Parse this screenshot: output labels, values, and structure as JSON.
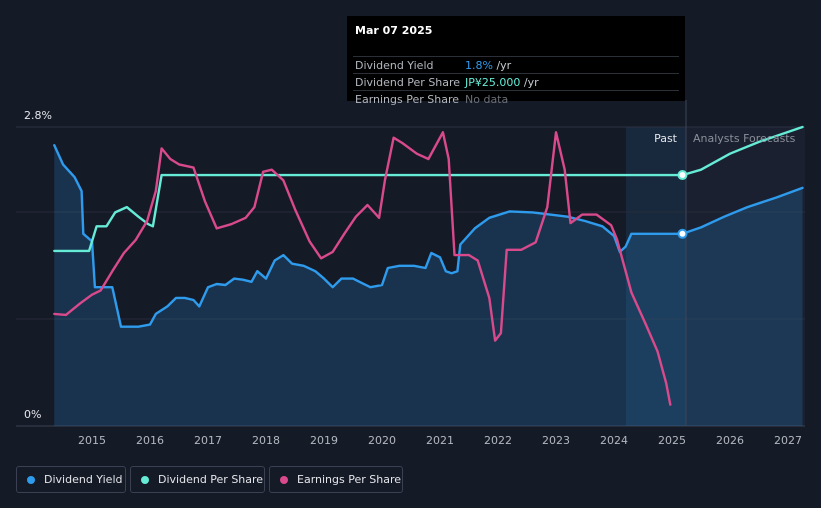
{
  "tooltip": {
    "date": "Mar 07 2025",
    "rows": [
      {
        "label": "Dividend Yield",
        "value": "1.8%",
        "unit": " /yr",
        "color": "#2f9bed"
      },
      {
        "label": "Dividend Per Share",
        "value": "JP¥25.000",
        "unit": " /yr",
        "color": "#65ebd6"
      },
      {
        "label": "Earnings Per Share",
        "value": "No data",
        "unit": "",
        "color": "#6b6f78"
      }
    ]
  },
  "labels": {
    "past": "Past",
    "forecast": "Analysts Forecasts"
  },
  "legend": [
    {
      "label": "Dividend Yield",
      "color": "#2f9bed"
    },
    {
      "label": "Dividend Per Share",
      "color": "#65ebd6"
    },
    {
      "label": "Earnings Per Share",
      "color": "#d84a8c"
    }
  ],
  "chart_data": {
    "type": "line",
    "ylim": [
      0,
      2.8
    ],
    "y_tick_labels": [
      "2.8%",
      "0%"
    ],
    "x_tick_labels": [
      "2015",
      "2016",
      "2017",
      "2018",
      "2019",
      "2020",
      "2021",
      "2022",
      "2023",
      "2024",
      "2025",
      "2026",
      "2027"
    ],
    "xlim": [
      2014.3,
      2027.25
    ],
    "grid": true,
    "legend_placement": "bottom-left",
    "forecast_start": 2025.18,
    "series": [
      {
        "name": "Dividend Yield",
        "color": "#2f9bed",
        "points": [
          [
            2014.35,
            2.63
          ],
          [
            2014.5,
            2.45
          ],
          [
            2014.7,
            2.33
          ],
          [
            2014.82,
            2.2
          ],
          [
            2014.85,
            1.8
          ],
          [
            2015.0,
            1.73
          ],
          [
            2015.05,
            1.3
          ],
          [
            2015.2,
            1.3
          ],
          [
            2015.35,
            1.3
          ],
          [
            2015.5,
            0.93
          ],
          [
            2015.8,
            0.93
          ],
          [
            2016.0,
            0.95
          ],
          [
            2016.1,
            1.05
          ],
          [
            2016.3,
            1.12
          ],
          [
            2016.45,
            1.2
          ],
          [
            2016.6,
            1.2
          ],
          [
            2016.75,
            1.18
          ],
          [
            2016.85,
            1.12
          ],
          [
            2017.0,
            1.3
          ],
          [
            2017.15,
            1.33
          ],
          [
            2017.3,
            1.32
          ],
          [
            2017.45,
            1.38
          ],
          [
            2017.6,
            1.37
          ],
          [
            2017.75,
            1.35
          ],
          [
            2017.85,
            1.45
          ],
          [
            2018.0,
            1.38
          ],
          [
            2018.15,
            1.55
          ],
          [
            2018.3,
            1.6
          ],
          [
            2018.45,
            1.52
          ],
          [
            2018.65,
            1.5
          ],
          [
            2018.85,
            1.45
          ],
          [
            2019.0,
            1.38
          ],
          [
            2019.15,
            1.3
          ],
          [
            2019.3,
            1.38
          ],
          [
            2019.5,
            1.38
          ],
          [
            2019.65,
            1.34
          ],
          [
            2019.8,
            1.3
          ],
          [
            2020.0,
            1.32
          ],
          [
            2020.1,
            1.48
          ],
          [
            2020.3,
            1.5
          ],
          [
            2020.55,
            1.5
          ],
          [
            2020.75,
            1.48
          ],
          [
            2020.85,
            1.62
          ],
          [
            2021.0,
            1.58
          ],
          [
            2021.1,
            1.45
          ],
          [
            2021.2,
            1.43
          ],
          [
            2021.3,
            1.45
          ],
          [
            2021.35,
            1.7
          ],
          [
            2021.6,
            1.85
          ],
          [
            2021.85,
            1.95
          ],
          [
            2022.2,
            2.01
          ],
          [
            2022.6,
            2.0
          ],
          [
            2022.9,
            1.98
          ],
          [
            2023.2,
            1.96
          ],
          [
            2023.5,
            1.92
          ],
          [
            2023.8,
            1.87
          ],
          [
            2024.0,
            1.78
          ],
          [
            2024.1,
            1.63
          ],
          [
            2024.2,
            1.68
          ],
          [
            2024.3,
            1.8
          ],
          [
            2024.6,
            1.8
          ],
          [
            2024.8,
            1.8
          ],
          [
            2025.0,
            1.8
          ],
          [
            2025.18,
            1.8
          ],
          [
            2025.5,
            1.86
          ],
          [
            2025.9,
            1.96
          ],
          [
            2026.3,
            2.05
          ],
          [
            2026.8,
            2.14
          ],
          [
            2027.25,
            2.23
          ]
        ]
      },
      {
        "name": "Dividend Per Share",
        "color": "#65ebd6",
        "points": [
          [
            2014.35,
            1.64
          ],
          [
            2014.95,
            1.64
          ],
          [
            2015.08,
            1.87
          ],
          [
            2015.25,
            1.87
          ],
          [
            2015.4,
            2.0
          ],
          [
            2015.6,
            2.05
          ],
          [
            2015.8,
            1.96
          ],
          [
            2015.97,
            1.89
          ],
          [
            2016.05,
            1.87
          ],
          [
            2016.2,
            2.35
          ],
          [
            2016.3,
            2.35
          ],
          [
            2024.6,
            2.35
          ],
          [
            2025.0,
            2.35
          ],
          [
            2025.18,
            2.35
          ],
          [
            2025.5,
            2.4
          ],
          [
            2026.0,
            2.55
          ],
          [
            2026.5,
            2.66
          ],
          [
            2027.25,
            2.8
          ]
        ]
      },
      {
        "name": "Earnings Per Share",
        "color": "#d84a8c",
        "points": [
          [
            2014.35,
            1.05
          ],
          [
            2014.55,
            1.04
          ],
          [
            2014.8,
            1.15
          ],
          [
            2015.0,
            1.23
          ],
          [
            2015.15,
            1.27
          ],
          [
            2015.35,
            1.45
          ],
          [
            2015.55,
            1.62
          ],
          [
            2015.75,
            1.74
          ],
          [
            2015.95,
            1.92
          ],
          [
            2016.1,
            2.2
          ],
          [
            2016.2,
            2.6
          ],
          [
            2016.35,
            2.5
          ],
          [
            2016.5,
            2.45
          ],
          [
            2016.75,
            2.42
          ],
          [
            2016.95,
            2.1
          ],
          [
            2017.15,
            1.85
          ],
          [
            2017.4,
            1.89
          ],
          [
            2017.65,
            1.95
          ],
          [
            2017.8,
            2.05
          ],
          [
            2017.95,
            2.38
          ],
          [
            2018.1,
            2.4
          ],
          [
            2018.3,
            2.3
          ],
          [
            2018.5,
            2.03
          ],
          [
            2018.75,
            1.73
          ],
          [
            2018.95,
            1.57
          ],
          [
            2019.15,
            1.63
          ],
          [
            2019.35,
            1.8
          ],
          [
            2019.55,
            1.96
          ],
          [
            2019.75,
            2.07
          ],
          [
            2019.95,
            1.95
          ],
          [
            2020.05,
            2.3
          ],
          [
            2020.2,
            2.7
          ],
          [
            2020.35,
            2.65
          ],
          [
            2020.6,
            2.55
          ],
          [
            2020.8,
            2.5
          ],
          [
            2020.95,
            2.65
          ],
          [
            2021.05,
            2.75
          ],
          [
            2021.15,
            2.5
          ],
          [
            2021.25,
            1.6
          ],
          [
            2021.5,
            1.6
          ],
          [
            2021.65,
            1.55
          ],
          [
            2021.85,
            1.2
          ],
          [
            2021.95,
            0.8
          ],
          [
            2022.05,
            0.87
          ],
          [
            2022.15,
            1.65
          ],
          [
            2022.4,
            1.65
          ],
          [
            2022.65,
            1.72
          ],
          [
            2022.85,
            2.05
          ],
          [
            2023.0,
            2.75
          ],
          [
            2023.15,
            2.4
          ],
          [
            2023.25,
            1.9
          ],
          [
            2023.45,
            1.98
          ],
          [
            2023.7,
            1.98
          ],
          [
            2023.95,
            1.88
          ],
          [
            2024.05,
            1.75
          ],
          [
            2024.3,
            1.25
          ],
          [
            2024.55,
            0.95
          ],
          [
            2024.75,
            0.7
          ],
          [
            2024.9,
            0.4
          ],
          [
            2024.97,
            0.2
          ]
        ]
      }
    ]
  }
}
